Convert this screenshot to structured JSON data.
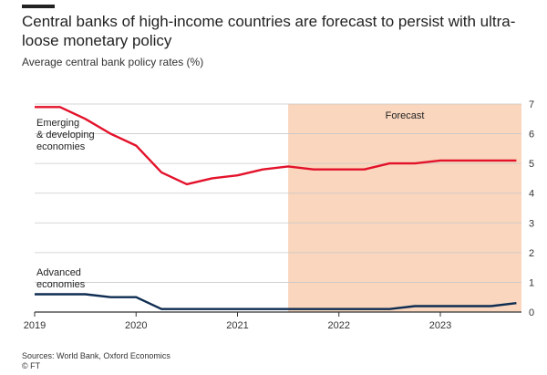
{
  "header": {
    "title": "Central banks of high-income countries are forecast to persist with ultra-loose monetary policy",
    "subtitle": "Average central bank policy rates (%)"
  },
  "footer": {
    "sources": "Sources: World Bank, Oxford Economics",
    "credit": "© FT"
  },
  "chart_data": {
    "type": "line",
    "xlim": [
      2019.0,
      2023.8
    ],
    "ylim": [
      0,
      7
    ],
    "y_ticks": [
      0,
      1,
      2,
      3,
      4,
      5,
      6,
      7
    ],
    "x_ticks": [
      2019,
      2020,
      2021,
      2022,
      2023
    ],
    "x_tick_labels": [
      "2019",
      "2020",
      "2021",
      "2022",
      "2023"
    ],
    "y_axis_side": "right",
    "grid": "horizontal",
    "forecast": {
      "label": "Forecast",
      "start": 2021.5,
      "end": 2023.8,
      "color": "#f9d6bd"
    },
    "series": [
      {
        "name": "Emerging & developing economies",
        "label_lines": [
          "Emerging",
          "& developing",
          "economies"
        ],
        "color": "#e3122b",
        "x": [
          2019.0,
          2019.25,
          2019.5,
          2019.75,
          2020.0,
          2020.25,
          2020.5,
          2020.75,
          2021.0,
          2021.25,
          2021.5,
          2021.75,
          2022.0,
          2022.25,
          2022.5,
          2022.75,
          2023.0,
          2023.25,
          2023.5,
          2023.75
        ],
        "values": [
          6.9,
          6.9,
          6.5,
          6.0,
          5.6,
          4.7,
          4.3,
          4.5,
          4.6,
          4.8,
          4.9,
          4.8,
          4.8,
          4.8,
          5.0,
          5.0,
          5.1,
          5.1,
          5.1,
          5.1
        ]
      },
      {
        "name": "Advanced economies",
        "label_lines": [
          "Advanced",
          "economies"
        ],
        "color": "#0f2d52",
        "x": [
          2019.0,
          2019.25,
          2019.5,
          2019.75,
          2020.0,
          2020.25,
          2020.5,
          2020.75,
          2021.0,
          2021.25,
          2021.5,
          2021.75,
          2022.0,
          2022.25,
          2022.5,
          2022.75,
          2023.0,
          2023.25,
          2023.5,
          2023.75
        ],
        "values": [
          0.6,
          0.6,
          0.6,
          0.5,
          0.5,
          0.1,
          0.1,
          0.1,
          0.1,
          0.1,
          0.1,
          0.1,
          0.1,
          0.1,
          0.1,
          0.2,
          0.2,
          0.2,
          0.2,
          0.3
        ]
      }
    ]
  }
}
